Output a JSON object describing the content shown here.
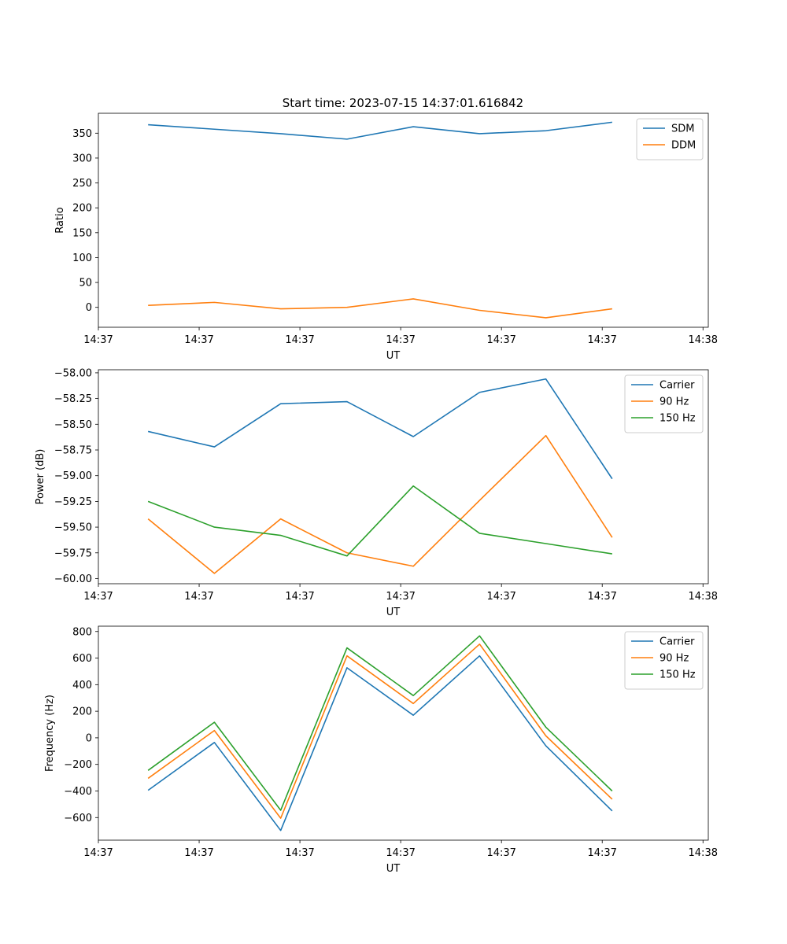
{
  "figure_title": "Start time: 2023-07-15 14:37:01.616842",
  "chart_data": [
    {
      "type": "line",
      "title": "Start time: 2023-07-15 14:37:01.616842",
      "xlabel": "UT",
      "ylabel": "Ratio",
      "x": [
        1,
        2,
        3,
        4,
        5,
        6,
        7,
        8
      ],
      "xlim": [
        0.25,
        9.45
      ],
      "xticks": [
        0.25,
        1.77,
        3.29,
        4.81,
        6.33,
        7.85,
        9.37
      ],
      "xtick_labels": [
        "14:37",
        "14:37",
        "14:37",
        "14:37",
        "14:37",
        "14:37",
        "14:38"
      ],
      "ylim": [
        -40,
        390
      ],
      "yticks": [
        0,
        50,
        100,
        150,
        200,
        250,
        300,
        350
      ],
      "ytick_labels": [
        "0",
        "50",
        "100",
        "150",
        "200",
        "250",
        "300",
        "350"
      ],
      "legend": "top-right",
      "series": [
        {
          "name": "SDM",
          "color": "#1f77b4",
          "values": [
            367,
            358,
            349,
            338,
            363,
            349,
            355,
            372
          ]
        },
        {
          "name": "DDM",
          "color": "#ff7f0e",
          "values": [
            4,
            10,
            -3,
            0,
            17,
            -6,
            -21,
            -3
          ]
        }
      ]
    },
    {
      "type": "line",
      "title": "",
      "xlabel": "UT",
      "ylabel": "Power (dB)",
      "x": [
        1,
        2,
        3,
        4,
        5,
        6,
        7,
        8
      ],
      "xlim": [
        0.25,
        9.45
      ],
      "xticks": [
        0.25,
        1.77,
        3.29,
        4.81,
        6.33,
        7.85,
        9.37
      ],
      "xtick_labels": [
        "14:37",
        "14:37",
        "14:37",
        "14:37",
        "14:37",
        "14:37",
        "14:38"
      ],
      "ylim": [
        -60.05,
        -57.97
      ],
      "yticks": [
        -60.0,
        -59.75,
        -59.5,
        -59.25,
        -59.0,
        -58.75,
        -58.5,
        -58.25,
        -58.0
      ],
      "ytick_labels": [
        "−60.00",
        "−59.75",
        "−59.50",
        "−59.25",
        "−59.00",
        "−58.75",
        "−58.50",
        "−58.25",
        "−58.00"
      ],
      "legend": "top-right",
      "series": [
        {
          "name": "Carrier",
          "color": "#1f77b4",
          "values": [
            -58.57,
            -58.72,
            -58.3,
            -58.28,
            -58.62,
            -58.19,
            -58.06,
            -59.03
          ]
        },
        {
          "name": "90 Hz",
          "color": "#ff7f0e",
          "values": [
            -59.42,
            -59.95,
            -59.42,
            -59.75,
            -59.88,
            -59.24,
            -58.61,
            -59.6
          ]
        },
        {
          "name": "150 Hz",
          "color": "#2ca02c",
          "values": [
            -59.25,
            -59.5,
            -59.58,
            -59.78,
            -59.1,
            -59.56,
            -59.66,
            -59.76
          ]
        }
      ]
    },
    {
      "type": "line",
      "title": "",
      "xlabel": "UT",
      "ylabel": "Frequency (Hz)",
      "x": [
        1,
        2,
        3,
        4,
        5,
        6,
        7,
        8
      ],
      "xlim": [
        0.25,
        9.45
      ],
      "xticks": [
        0.25,
        1.77,
        3.29,
        4.81,
        6.33,
        7.85,
        9.37
      ],
      "xtick_labels": [
        "14:37",
        "14:37",
        "14:37",
        "14:37",
        "14:37",
        "14:37",
        "14:38"
      ],
      "ylim": [
        -770,
        840
      ],
      "yticks": [
        -600,
        -400,
        -200,
        0,
        200,
        400,
        600,
        800
      ],
      "ytick_labels": [
        "−600",
        "−400",
        "−200",
        "0",
        "200",
        "400",
        "600",
        "800"
      ],
      "legend": "top-right",
      "series": [
        {
          "name": "Carrier",
          "color": "#1f77b4",
          "values": [
            -395,
            -35,
            -697,
            527,
            170,
            617,
            -60,
            -550
          ]
        },
        {
          "name": "90 Hz",
          "color": "#ff7f0e",
          "values": [
            -305,
            55,
            -605,
            617,
            258,
            705,
            15,
            -462
          ]
        },
        {
          "name": "150 Hz",
          "color": "#2ca02c",
          "values": [
            -245,
            117,
            -545,
            677,
            318,
            767,
            80,
            -400
          ]
        }
      ]
    }
  ]
}
